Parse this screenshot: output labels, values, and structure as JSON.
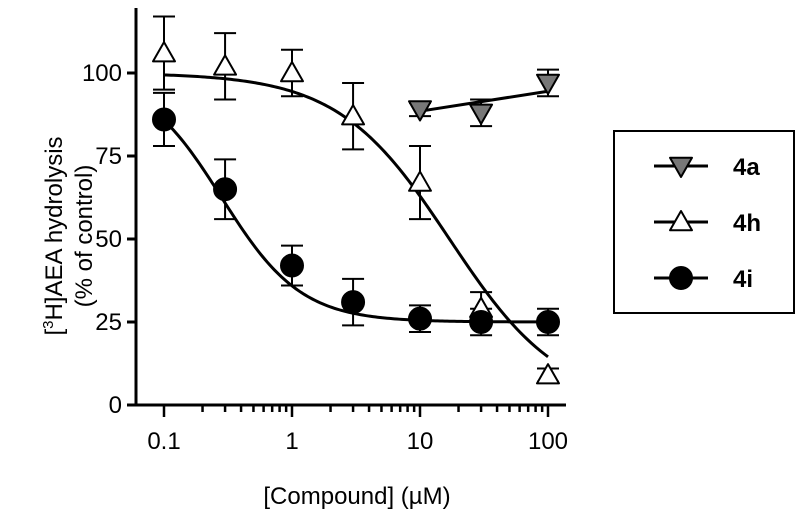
{
  "chart_data": {
    "type": "scatter",
    "xlabel": "[Compound] (µM)",
    "ylabel_line1_prefix": "[",
    "ylabel_line1_sup": "3",
    "ylabel_line1_suffix": "H]AEA hydrolysis",
    "ylabel_line2": "(% of control)",
    "x_scale": "log",
    "xlim": [
      0.07,
      160
    ],
    "ylim": [
      0,
      117
    ],
    "x_ticks": [
      0.1,
      1,
      10,
      100
    ],
    "x_tick_labels": [
      "0.1",
      "1",
      "10",
      "100"
    ],
    "y_ticks": [
      0,
      25,
      50,
      75,
      100
    ],
    "y_tick_labels": [
      "0",
      "25",
      "50",
      "75",
      "100"
    ],
    "legend_position": "right",
    "series": [
      {
        "name": "4a",
        "marker": "triangle-down",
        "marker_color": "#777777",
        "x": [
          10,
          30,
          100
        ],
        "y": [
          89,
          88,
          97
        ],
        "err": [
          2,
          4,
          4
        ],
        "curve_x": [
          10,
          100
        ],
        "curve_y": [
          88.5,
          94.5
        ]
      },
      {
        "name": "4h",
        "marker": "triangle-up",
        "marker_color": "#ffffff",
        "x": [
          0.1,
          0.3,
          1,
          3,
          10,
          30,
          100
        ],
        "y": [
          106,
          102,
          100,
          87,
          67,
          29,
          9
        ],
        "err": [
          11,
          10,
          7,
          10,
          11,
          5,
          2
        ],
        "fit": {
          "top": 100,
          "bottom": 0,
          "logEC50": 1.23,
          "hill": 1.0
        }
      },
      {
        "name": "4i",
        "marker": "circle",
        "marker_color": "#000000",
        "x": [
          0.1,
          0.3,
          1,
          3,
          10,
          30,
          100
        ],
        "y": [
          86,
          65,
          42,
          31,
          26,
          25,
          25
        ],
        "err": [
          8,
          9,
          6,
          7,
          4,
          4,
          4
        ],
        "fit": {
          "top": 100,
          "bottom": 25,
          "logEC50": -0.55,
          "hill": 1.4
        }
      }
    ]
  }
}
